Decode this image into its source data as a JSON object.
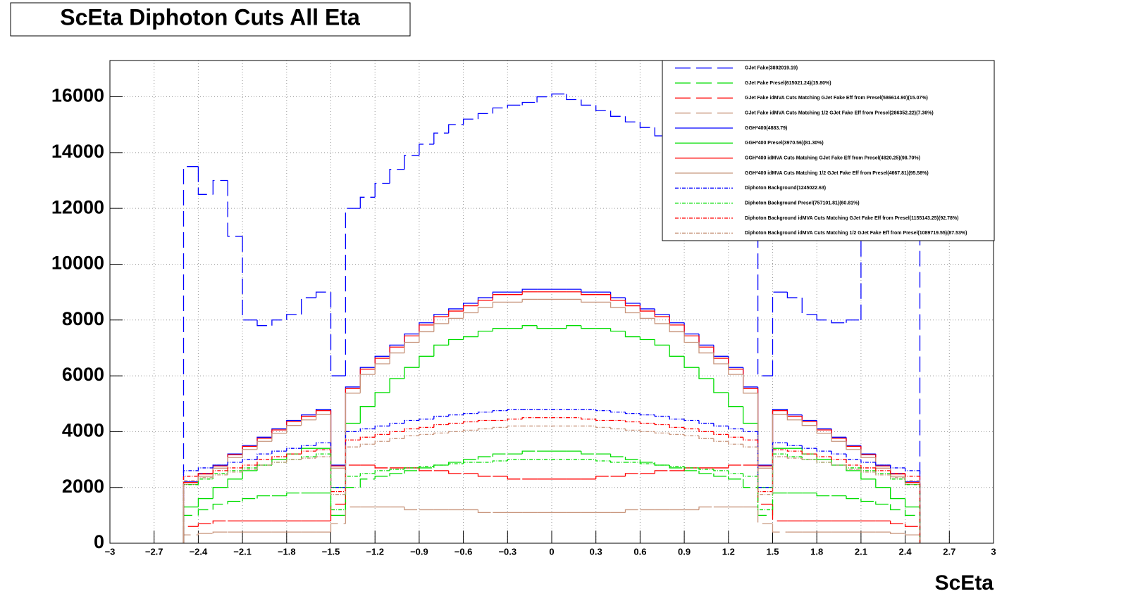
{
  "chart_data": {
    "type": "histogram",
    "title": "ScEta Diphoton Cuts All Eta",
    "x_label": "ScEta",
    "xlim": [
      -3,
      3
    ],
    "ylim": [
      0,
      17300
    ],
    "grid": true,
    "legend": "top-right",
    "xticks": [
      {
        "value": -3,
        "label": "−3"
      },
      {
        "value": -2.7,
        "label": "−2.7"
      },
      {
        "value": -2.4,
        "label": "−2.4"
      },
      {
        "value": -2.1,
        "label": "−2.1"
      },
      {
        "value": -1.8,
        "label": "−1.8"
      },
      {
        "value": -1.5,
        "label": "−1.5"
      },
      {
        "value": -1.2,
        "label": "−1.2"
      },
      {
        "value": -0.9,
        "label": "−0.9"
      },
      {
        "value": -0.6,
        "label": "−0.6"
      },
      {
        "value": -0.3,
        "label": "−0.3"
      },
      0,
      0.3,
      0.6,
      0.9,
      1.2,
      1.5,
      1.8,
      2.1,
      2.4,
      2.7,
      3
    ],
    "yticks": [
      0,
      2000,
      4000,
      6000,
      8000,
      10000,
      12000,
      14000,
      16000
    ],
    "bins": [
      -2.5,
      -2.4,
      -2.3,
      -2.2,
      -2.1,
      -2,
      -1.9,
      -1.8,
      -1.7,
      -1.6,
      -1.5,
      -1.4,
      -1.3,
      -1.2,
      -1.1,
      -1,
      -0.9,
      -0.8,
      -0.7,
      -0.6,
      -0.5,
      -0.4,
      -0.3,
      -0.2,
      -0.1,
      0,
      0.1,
      0.2,
      0.3,
      0.4,
      0.5,
      0.6,
      0.7,
      0.8,
      0.9,
      1,
      1.1,
      1.2,
      1.3,
      1.4,
      1.5,
      1.6,
      1.7,
      1.8,
      1.9,
      2,
      2.1,
      2.2,
      2.3,
      2.4,
      2.5
    ],
    "series": [
      {
        "name": "GJet Fake(3892019.19)",
        "color": "#0000ff",
        "line_style": "dashed",
        "values": [
          13500,
          12500,
          13000,
          11000,
          8000,
          7800,
          8000,
          8200,
          8800,
          9000,
          6000,
          12000,
          12400,
          12900,
          13400,
          13900,
          14300,
          14700,
          15000,
          15200,
          15400,
          15600,
          15700,
          15800,
          16000,
          16100,
          15900,
          15700,
          15500,
          15300,
          15100,
          14900,
          14600,
          14200,
          13800,
          13300,
          12800,
          12300,
          11900,
          6000,
          9000,
          8800,
          8200,
          8000,
          7900,
          8000,
          11000,
          13000,
          12500,
          13500
        ]
      },
      {
        "name": "GJet Fake Presel(615021.24)(15.80%)",
        "color": "#00dd00",
        "line_style": "dashed",
        "values": [
          1000,
          1200,
          1400,
          1500,
          1600,
          1700,
          1700,
          1800,
          1800,
          1800,
          1000,
          2000,
          2300,
          2400,
          2500,
          2600,
          2700,
          2800,
          2900,
          3000,
          3100,
          3200,
          3200,
          3300,
          3300,
          3300,
          3300,
          3200,
          3200,
          3100,
          3000,
          2900,
          2800,
          2700,
          2600,
          2500,
          2400,
          2300,
          2000,
          1000,
          1800,
          1800,
          1800,
          1700,
          1700,
          1600,
          1500,
          1400,
          1200,
          1000
        ]
      },
      {
        "name": "GJet Fake idMVA Cuts Matching GJet Fake Eff from Presel(586614.90)(15.07%)",
        "color": "#ff0000",
        "line_style": "dashed",
        "values": [
          600,
          700,
          800,
          800,
          800,
          800,
          800,
          800,
          800,
          800,
          1400,
          2800,
          2800,
          2700,
          2700,
          2700,
          2600,
          2600,
          2500,
          2500,
          2400,
          2400,
          2300,
          2300,
          2300,
          2300,
          2300,
          2300,
          2400,
          2400,
          2500,
          2500,
          2600,
          2600,
          2700,
          2700,
          2700,
          2800,
          2800,
          1400,
          800,
          800,
          800,
          800,
          800,
          800,
          800,
          800,
          700,
          600
        ]
      },
      {
        "name": "GJet Fake idMVA Cuts Matching 1/2 GJet Fake Eff from Presel(286352.22)(7.36%)",
        "color": "#c8967d",
        "line_style": "dashed",
        "values": [
          300,
          350,
          400,
          400,
          400,
          400,
          400,
          400,
          400,
          400,
          700,
          1300,
          1300,
          1300,
          1300,
          1200,
          1200,
          1200,
          1200,
          1200,
          1100,
          1100,
          1100,
          1100,
          1100,
          1100,
          1100,
          1100,
          1100,
          1100,
          1200,
          1200,
          1200,
          1200,
          1200,
          1300,
          1300,
          1300,
          1300,
          700,
          400,
          400,
          400,
          400,
          400,
          400,
          400,
          400,
          350,
          300
        ]
      },
      {
        "name": "GGH*400(4883.79)",
        "color": "#0000ff",
        "line_style": "solid",
        "values": [
          2200,
          2500,
          2800,
          3200,
          3500,
          3800,
          4100,
          4400,
          4600,
          4800,
          2800,
          5600,
          6300,
          6700,
          7100,
          7500,
          7900,
          8200,
          8400,
          8600,
          8800,
          9000,
          9000,
          9100,
          9100,
          9100,
          9100,
          9000,
          9000,
          8800,
          8600,
          8400,
          8200,
          7900,
          7500,
          7100,
          6700,
          6300,
          5600,
          2800,
          4800,
          4600,
          4400,
          4100,
          3800,
          3500,
          3200,
          2800,
          2500,
          2200
        ]
      },
      {
        "name": "GGH*400 Presel(3970.56)(81.30%)",
        "color": "#00dd00",
        "line_style": "solid",
        "values": [
          1300,
          1600,
          2000,
          2300,
          2600,
          2800,
          3000,
          3200,
          3400,
          3400,
          2000,
          4300,
          4900,
          5400,
          5900,
          6300,
          6700,
          7100,
          7300,
          7400,
          7600,
          7700,
          7700,
          7800,
          7700,
          7700,
          7800,
          7700,
          7700,
          7600,
          7400,
          7300,
          7100,
          6700,
          6300,
          5900,
          5400,
          4900,
          4300,
          2000,
          3400,
          3400,
          3200,
          3000,
          2800,
          2600,
          2300,
          2000,
          1600,
          1300
        ]
      },
      {
        "name": "GGH*400 idMVA Cuts Matching GJet Fake Eff from Presel(4820.25)(98.70%)",
        "color": "#ff0000",
        "line_style": "solid",
        "values": [
          2180,
          2480,
          2770,
          3170,
          3470,
          3760,
          4060,
          4360,
          4550,
          4750,
          2770,
          5540,
          6240,
          6630,
          7030,
          7430,
          7820,
          8120,
          8320,
          8510,
          8710,
          8910,
          8910,
          9010,
          9010,
          9010,
          9010,
          8910,
          8910,
          8710,
          8510,
          8320,
          8120,
          7820,
          7430,
          7030,
          6630,
          6240,
          5540,
          2770,
          4750,
          4550,
          4360,
          4060,
          3760,
          3470,
          3170,
          2770,
          2480,
          2180
        ]
      },
      {
        "name": "GGH*400 idMVA Cuts Matching 1/2 GJet Fake Eff from Presel(4667.81)(95.58%)",
        "color": "#c8967d",
        "line_style": "solid",
        "values": [
          2110,
          2400,
          2690,
          3070,
          3360,
          3650,
          3940,
          4220,
          4420,
          4610,
          2690,
          5380,
          6050,
          6430,
          6820,
          7200,
          7580,
          7870,
          8060,
          8260,
          8450,
          8640,
          8640,
          8740,
          8740,
          8740,
          8740,
          8640,
          8640,
          8450,
          8260,
          8060,
          7870,
          7580,
          7200,
          6820,
          6430,
          6050,
          5380,
          2690,
          4610,
          4420,
          4220,
          3940,
          3650,
          3360,
          3070,
          2690,
          2400,
          2110
        ]
      },
      {
        "name": "Diphoton Background(1245022.63)",
        "color": "#0000ff",
        "line_style": "dashdot",
        "values": [
          2600,
          2700,
          2800,
          2900,
          3000,
          3200,
          3300,
          3400,
          3500,
          3600,
          2000,
          4000,
          4100,
          4200,
          4300,
          4400,
          4450,
          4550,
          4600,
          4650,
          4700,
          4750,
          4800,
          4800,
          4800,
          4800,
          4800,
          4800,
          4750,
          4700,
          4650,
          4600,
          4550,
          4450,
          4400,
          4300,
          4200,
          4100,
          4000,
          2000,
          3600,
          3500,
          3400,
          3300,
          3200,
          3000,
          2900,
          2800,
          2700,
          2600
        ]
      },
      {
        "name": "Diphoton Background Presel(757101.81)(60.81%)",
        "color": "#00dd00",
        "line_style": "dashdot",
        "values": [
          2100,
          2300,
          2500,
          2600,
          2700,
          2800,
          2900,
          3000,
          3100,
          3200,
          1200,
          2400,
          2500,
          2600,
          2650,
          2700,
          2750,
          2800,
          2850,
          2900,
          2900,
          2950,
          3000,
          3000,
          3000,
          3000,
          3000,
          3000,
          2950,
          2900,
          2900,
          2850,
          2800,
          2750,
          2700,
          2650,
          2600,
          2500,
          2400,
          1200,
          3200,
          3100,
          3000,
          2900,
          2800,
          2700,
          2600,
          2500,
          2300,
          2100
        ]
      },
      {
        "name": "Diphoton Background idMVA Cuts Matching GJet Fake Eff from Presel(1155143.25)(92.78%)",
        "color": "#ff0000",
        "line_style": "dashdot",
        "values": [
          2400,
          2500,
          2600,
          2700,
          2800,
          3000,
          3100,
          3200,
          3300,
          3350,
          1850,
          3700,
          3800,
          3900,
          4000,
          4100,
          4150,
          4250,
          4300,
          4350,
          4400,
          4400,
          4450,
          4500,
          4500,
          4500,
          4500,
          4450,
          4400,
          4400,
          4350,
          4300,
          4250,
          4150,
          4100,
          4000,
          3900,
          3800,
          3700,
          1850,
          3350,
          3300,
          3200,
          3100,
          3000,
          2800,
          2700,
          2600,
          2500,
          2400
        ]
      },
      {
        "name": "Diphoton Background idMVA Cuts Matching 1/2 GJet Fake Eff from Presel(1089719.55)(87.53%)",
        "color": "#c8967d",
        "line_style": "dashdot",
        "values": [
          2250,
          2350,
          2450,
          2550,
          2650,
          2800,
          2900,
          3000,
          3050,
          3100,
          1750,
          3450,
          3550,
          3650,
          3750,
          3850,
          3900,
          3950,
          4000,
          4050,
          4100,
          4150,
          4200,
          4200,
          4200,
          4200,
          4200,
          4200,
          4150,
          4100,
          4050,
          4000,
          3950,
          3900,
          3850,
          3750,
          3650,
          3550,
          3450,
          1750,
          3100,
          3050,
          3000,
          2900,
          2800,
          2650,
          2550,
          2450,
          2350,
          2250
        ]
      }
    ]
  }
}
